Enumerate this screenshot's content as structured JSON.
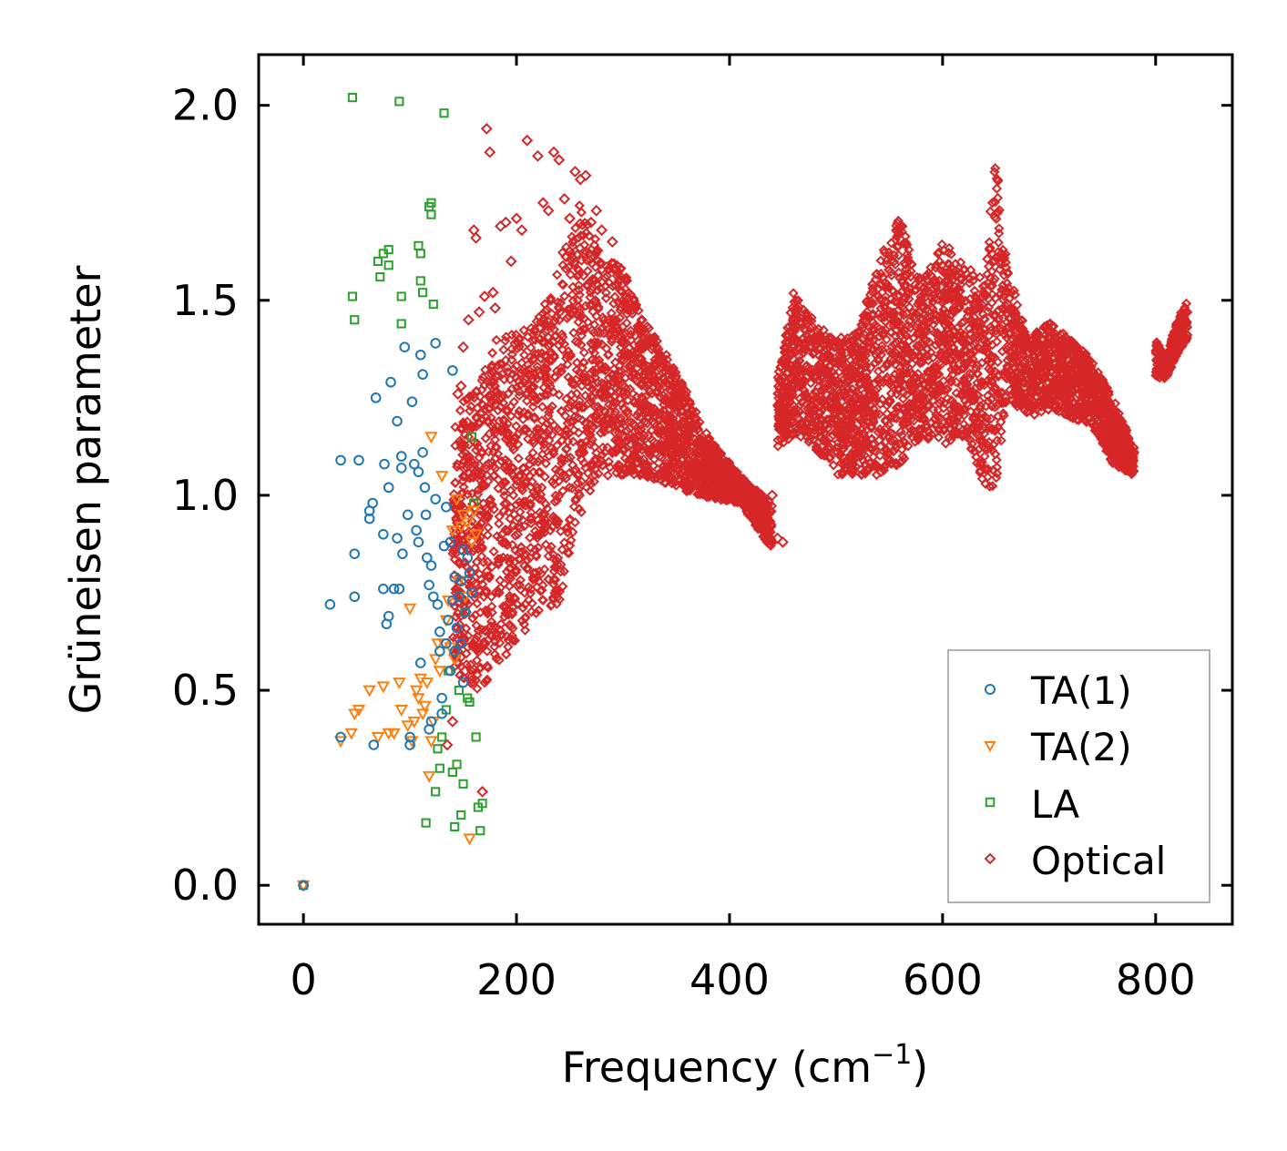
{
  "chart_data": {
    "type": "scatter",
    "title": "",
    "xlabel": "Frequency (cm",
    "xlabel_sup": "−1",
    "xlabel_close": ")",
    "ylabel": "Grüneisen parameter",
    "xlim": [
      -42,
      872
    ],
    "ylim": [
      -0.1,
      2.13
    ],
    "xticks": [
      0,
      200,
      400,
      600,
      800
    ],
    "xtick_labels": [
      "0",
      "200",
      "400",
      "600",
      "800"
    ],
    "yticks": [
      0.0,
      0.5,
      1.0,
      1.5,
      2.0
    ],
    "ytick_labels": [
      "0.0",
      "0.5",
      "1.0",
      "1.5",
      "2.0"
    ],
    "grid": false,
    "legend_position": "bottom-right",
    "series": [
      {
        "name": "TA(1)",
        "marker": "circle",
        "color": "#1f77b4",
        "x": [
          0,
          25,
          35,
          35,
          48,
          48,
          52,
          62,
          62,
          65,
          66,
          68,
          75,
          75,
          76,
          78,
          80,
          80,
          82,
          85,
          88,
          88,
          90,
          92,
          92,
          93,
          95,
          98,
          100,
          100,
          102,
          104,
          106,
          108,
          108,
          110,
          110,
          112,
          112,
          114,
          115,
          116,
          118,
          118,
          120,
          120,
          122,
          124,
          124,
          126,
          128,
          128,
          130,
          130,
          132,
          134,
          134,
          136,
          138,
          138,
          140,
          140,
          142,
          142,
          144,
          146,
          148,
          148,
          150,
          150,
          152,
          154,
          156,
          158
        ],
        "y": [
          0.0,
          0.72,
          0.38,
          1.09,
          0.85,
          0.74,
          1.09,
          0.94,
          0.96,
          0.98,
          0.36,
          1.25,
          0.9,
          0.76,
          1.08,
          0.67,
          0.69,
          1.02,
          1.29,
          0.76,
          1.19,
          0.89,
          0.76,
          1.1,
          1.07,
          0.85,
          1.38,
          0.95,
          0.36,
          0.38,
          1.24,
          1.08,
          0.91,
          0.88,
          1.06,
          0.57,
          1.36,
          1.11,
          1.31,
          1.02,
          0.95,
          0.84,
          0.77,
          0.4,
          0.42,
          0.82,
          0.74,
          0.99,
          1.39,
          0.72,
          0.6,
          0.65,
          0.44,
          0.48,
          0.87,
          0.62,
          0.97,
          0.68,
          0.55,
          0.88,
          1.32,
          0.73,
          0.6,
          0.79,
          0.66,
          0.74,
          0.78,
          0.62,
          0.52,
          0.86,
          0.7,
          0.84,
          0.8,
          0.75
        ]
      },
      {
        "name": "TA(2)",
        "marker": "triangle-down",
        "color": "#ff7f0e",
        "x": [
          0,
          35,
          45,
          48,
          52,
          62,
          70,
          75,
          80,
          85,
          90,
          92,
          98,
          100,
          102,
          104,
          106,
          108,
          110,
          112,
          114,
          116,
          118,
          120,
          120,
          122,
          124,
          126,
          128,
          130,
          132,
          134,
          136,
          138,
          140,
          142,
          144,
          146,
          148,
          150,
          152,
          154,
          156,
          158,
          160,
          162
        ],
        "y": [
          0.0,
          0.37,
          0.39,
          0.44,
          0.45,
          0.5,
          0.38,
          0.51,
          0.39,
          0.39,
          0.52,
          0.45,
          0.41,
          0.71,
          0.37,
          0.42,
          0.5,
          0.48,
          0.53,
          0.44,
          0.46,
          0.52,
          0.28,
          1.15,
          0.37,
          0.42,
          0.58,
          0.62,
          0.55,
          1.05,
          0.62,
          0.68,
          0.73,
          0.61,
          0.91,
          0.58,
          0.99,
          0.78,
          0.92,
          0.95,
          0.74,
          0.93,
          0.12,
          0.88,
          0.96,
          0.9
        ]
      },
      {
        "name": "LA",
        "marker": "square",
        "color": "#2ca02c",
        "x": [
          0,
          46,
          46,
          48,
          70,
          72,
          75,
          80,
          80,
          90,
          92,
          92,
          108,
          110,
          110,
          112,
          115,
          118,
          120,
          120,
          122,
          124,
          126,
          128,
          130,
          132,
          134,
          136,
          140,
          142,
          144,
          146,
          148,
          150,
          152,
          154,
          156,
          158,
          160,
          162,
          164,
          166,
          168
        ],
        "y": [
          0.0,
          2.02,
          1.51,
          1.45,
          1.6,
          1.56,
          1.62,
          1.59,
          1.63,
          2.01,
          1.51,
          1.44,
          1.64,
          1.62,
          1.55,
          1.52,
          0.16,
          1.74,
          1.72,
          1.75,
          1.49,
          0.24,
          0.35,
          0.3,
          0.38,
          1.98,
          0.45,
          0.55,
          0.29,
          0.15,
          0.31,
          0.5,
          0.18,
          0.26,
          0.7,
          0.48,
          0.47,
          1.15,
          0.98,
          0.38,
          0.2,
          0.14,
          0.21
        ]
      },
      {
        "name": "Optical",
        "marker": "diamond",
        "color": "#d62728",
        "scattered": {
          "x": [
            0,
            135,
            140,
            145,
            148,
            150,
            152,
            155,
            160,
            162,
            165,
            168,
            170,
            172,
            175,
            178,
            180,
            185,
            190,
            195,
            200,
            205,
            210,
            215,
            220,
            225,
            230,
            235,
            240,
            245,
            250,
            255,
            260,
            265,
            270,
            275,
            280,
            290,
            300,
            310,
            440,
            445,
            450
          ],
          "y": [
            0.0,
            0.36,
            0.42,
            1.26,
            1.28,
            1.38,
            0.55,
            1.45,
            1.68,
            1.66,
            1.47,
            0.24,
            1.51,
            1.94,
            1.88,
            1.52,
            1.48,
            1.69,
            1.7,
            1.6,
            1.71,
            1.68,
            1.91,
            1.3,
            1.87,
            1.75,
            1.73,
            1.88,
            1.86,
            1.76,
            1.71,
            1.83,
            1.81,
            1.82,
            1.7,
            1.73,
            1.68,
            1.65,
            1.12,
            1.1,
            1.0,
            0.89,
            0.88
          ]
        },
        "bands": [
          {
            "x": [
              140,
              165,
              180,
              200,
              220,
              240,
              260,
              280,
              300,
              320,
              350,
              380,
              410,
              440
            ],
            "lower": [
              0.55,
              0.5,
              0.55,
              0.62,
              0.7,
              0.72,
              0.95,
              1.05,
              1.05,
              1.05,
              1.02,
              0.99,
              0.98,
              0.86
            ],
            "upper": [
              1.2,
              1.3,
              1.4,
              1.42,
              1.45,
              1.6,
              1.75,
              1.62,
              1.58,
              1.45,
              1.32,
              1.15,
              1.05,
              0.98
            ]
          },
          {
            "x": [
              445,
              460,
              480,
              500,
              520,
              540,
              560,
              580,
              600,
              620,
              640,
              650,
              660,
              680,
              700,
              720,
              740,
              760,
              780
            ],
            "lower": [
              1.12,
              1.15,
              1.12,
              1.05,
              1.05,
              1.05,
              1.08,
              1.15,
              1.12,
              1.15,
              1.02,
              1.02,
              1.25,
              1.2,
              1.22,
              1.2,
              1.18,
              1.08,
              1.05
            ],
            "upper": [
              1.3,
              1.52,
              1.45,
              1.4,
              1.42,
              1.6,
              1.72,
              1.55,
              1.65,
              1.6,
              1.55,
              1.92,
              1.6,
              1.4,
              1.45,
              1.4,
              1.35,
              1.25,
              1.12
            ]
          },
          {
            "x": [
              800,
              810,
              820,
              830
            ],
            "lower": [
              1.3,
              1.3,
              1.36,
              1.4
            ],
            "upper": [
              1.4,
              1.35,
              1.45,
              1.5
            ]
          }
        ]
      }
    ]
  }
}
